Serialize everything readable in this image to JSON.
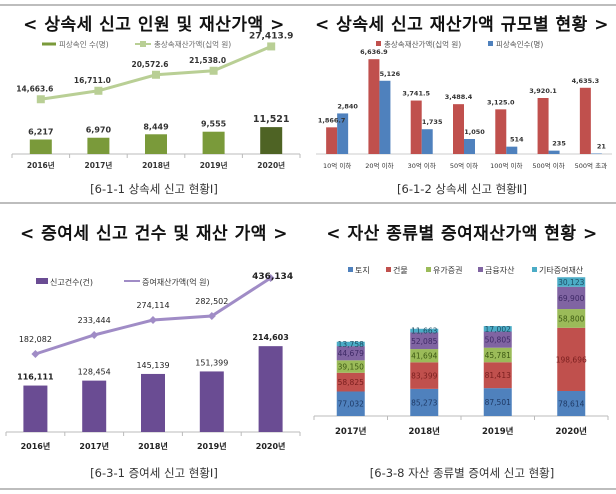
{
  "chart_data": [
    {
      "id": "inherit-overview",
      "type": "bar",
      "title": "< 상속세 신고 인원 및 재산가액 >",
      "caption": "[6-1-1 상속세 신고 현황Ⅰ]",
      "categories": [
        "2016년",
        "2017년",
        "2018년",
        "2019년",
        "2020년"
      ],
      "series": [
        {
          "name": "피상속인 수(명)",
          "kind": "bar",
          "color": "#7a9a3a",
          "highlight_color": "#4e6324",
          "values": [
            6217,
            6970,
            8449,
            9555,
            11521
          ],
          "labels": [
            "6,217",
            "6,970",
            "8,449",
            "9,555",
            "11,521"
          ]
        },
        {
          "name": "총상속재산가액(십억 원)",
          "kind": "line",
          "color": "#b9cf95",
          "values": [
            14663.6,
            16711.0,
            20572.6,
            21538.0,
            27413.9
          ],
          "labels": [
            "14,663.6",
            "16,711.0",
            "20,572.6",
            "21,538.0",
            "27,413.9"
          ]
        }
      ],
      "legend_position": "top"
    },
    {
      "id": "inherit-by-size",
      "type": "bar",
      "title": "< 상속세 신고 재산가액 규모별 현황 >",
      "caption": "[6-1-2 상속세 신고 현황Ⅱ]",
      "categories": [
        "10억 이하",
        "20억 이하",
        "30억 이하",
        "50억 이하",
        "100억 이하",
        "500억 이하",
        "500억 초과"
      ],
      "series": [
        {
          "name": "총상속재산가액(십억 원)",
          "color": "#c0504d",
          "values": [
            1866.7,
            6636.9,
            3741.5,
            3488.4,
            3125.0,
            3920.1,
            4635.3
          ],
          "labels": [
            "1,866.7",
            "6,636.9",
            "3,741.5",
            "3,488.4",
            "3,125.0",
            "3,920.1",
            "4,635.3"
          ]
        },
        {
          "name": "피상속인수(명)",
          "color": "#4f81bd",
          "values": [
            2840,
            5126,
            1735,
            1050,
            514,
            235,
            21
          ],
          "labels": [
            "2,840",
            "5,126",
            "1,735",
            "1,050",
            "514",
            "235",
            "21"
          ]
        }
      ],
      "legend_position": "top"
    },
    {
      "id": "gift-overview",
      "type": "bar",
      "title": "< 증여세 신고 건수 및 재산 가액 >",
      "caption": "[6-3-1 증여세 신고 현황Ⅰ]",
      "categories": [
        "2016년",
        "2017년",
        "2018년",
        "2019년",
        "2020년"
      ],
      "series": [
        {
          "name": "신고건수(건)",
          "kind": "bar",
          "color": "#6a4c93",
          "values": [
            116111,
            128454,
            145139,
            151399,
            214603
          ],
          "labels": [
            "116,111",
            "128,454",
            "145,139",
            "151,399",
            "214,603"
          ]
        },
        {
          "name": "증여재산가액(억 원)",
          "kind": "line",
          "color": "#a08cc6",
          "values": [
            182082,
            233444,
            274114,
            282502,
            436134
          ],
          "labels": [
            "182,082",
            "233,444",
            "274,114",
            "282,502",
            "436,134"
          ]
        }
      ],
      "legend_position": "top-left"
    },
    {
      "id": "gift-by-asset",
      "type": "bar",
      "stacked": true,
      "title": "< 자산 종류별 증여재산가액 현황 >",
      "caption": "[6-3-8 자산 종류별 증여세 신고 현황]",
      "categories": [
        "2017년",
        "2018년",
        "2019년",
        "2020년"
      ],
      "series": [
        {
          "name": "토지",
          "color": "#4f81bd",
          "values": [
            77032,
            85273,
            87501,
            78614
          ],
          "labels": [
            "77,032",
            "85,273",
            "87,501",
            "78,614"
          ]
        },
        {
          "name": "건물",
          "color": "#c0504d",
          "values": [
            58825,
            83399,
            81413,
            198696
          ],
          "labels": [
            "58,825",
            "83,399",
            "81,413",
            "198,696"
          ]
        },
        {
          "name": "유가증권",
          "color": "#9bbb59",
          "values": [
            39150,
            41694,
            45781,
            58800
          ],
          "labels": [
            "39,150",
            "41,694",
            "45,781",
            "58,800"
          ]
        },
        {
          "name": "금융자산",
          "color": "#8064a2",
          "values": [
            44679,
            52085,
            50805,
            69900
          ],
          "labels": [
            "44,679",
            "52,085",
            "50,805",
            "69,900"
          ]
        },
        {
          "name": "기타증여재산",
          "color": "#4bacc6",
          "values": [
            13758,
            11663,
            17002,
            30123
          ],
          "labels": [
            "13,758",
            "11,663",
            "17,002",
            "30,123"
          ]
        }
      ],
      "legend_position": "top"
    }
  ]
}
